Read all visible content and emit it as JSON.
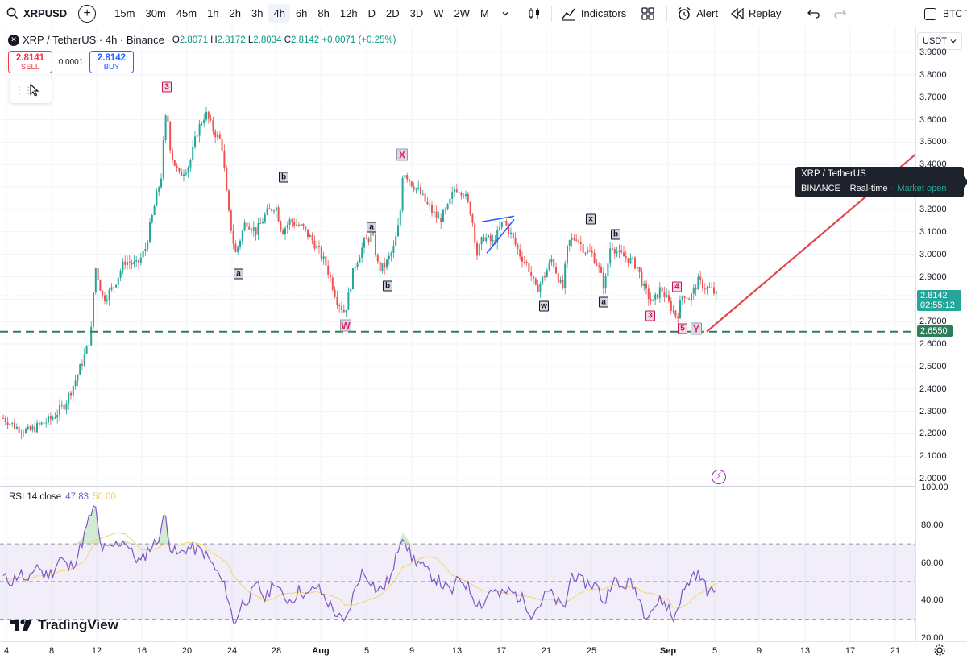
{
  "toolbar": {
    "symbol": "XRPUSD",
    "intervals": [
      "15m",
      "30m",
      "45m",
      "1h",
      "2h",
      "3h",
      "4h",
      "6h",
      "8h",
      "12h",
      "D",
      "2D",
      "3D",
      "W",
      "2W",
      "M"
    ],
    "active_interval": "4h",
    "indicators_label": "Indicators",
    "alert_label": "Alert",
    "replay_label": "Replay",
    "compare_symbol": "BTC T"
  },
  "legend": {
    "title": "XRP / TetherUS · 4h · Binance",
    "o_label": "O",
    "o": "2.8071",
    "h_label": "H",
    "h": "2.8172",
    "l_label": "L",
    "l": "2.8034",
    "c_label": "C",
    "c": "2.8142",
    "change": "+0.0071 (+0.25%)"
  },
  "trade": {
    "sell_price": "2.8141",
    "sell_label": "SELL",
    "spread": "0.0001",
    "buy_price": "2.8142",
    "buy_label": "BUY"
  },
  "currency": "USDT",
  "price_tag": {
    "price": "2.8142",
    "countdown": "02:55:12"
  },
  "support_tag": "2.6550",
  "tooltip": {
    "title": "XRP / TetherUS",
    "exchange": "BINANCE",
    "feed": "Real-time",
    "status": "Market open"
  },
  "rsi": {
    "label": "RSI 14 close",
    "value": "47.83",
    "ma": "50.00"
  },
  "brand": "TradingView",
  "colors": {
    "up": "#26a69a",
    "down": "#ef5350",
    "support": "#2e7d5b",
    "rsi": "#7e57c2",
    "trend": "#e0474c"
  },
  "waves": [
    {
      "t": "3",
      "style": "pink"
    },
    {
      "t": "b",
      "style": "dark"
    },
    {
      "t": "a",
      "style": "dark"
    },
    {
      "t": "X",
      "style": "bigpink"
    },
    {
      "t": "a",
      "style": "dark"
    },
    {
      "t": "b",
      "style": "dark"
    },
    {
      "t": "W",
      "style": "bigpink"
    },
    {
      "t": "x",
      "style": "dark"
    },
    {
      "t": "b",
      "style": "dark"
    },
    {
      "t": "w",
      "style": "dark"
    },
    {
      "t": "a",
      "style": "dark"
    },
    {
      "t": "4",
      "style": "pink"
    },
    {
      "t": "3",
      "style": "pink"
    },
    {
      "t": "5",
      "style": "pink"
    },
    {
      "t": "Y",
      "style": "bigpink"
    }
  ],
  "chart_data": {
    "type": "candlestick",
    "title": "XRP / TetherUS · 4h · Binance",
    "ylim": [
      1.95,
      3.93
    ],
    "y_ticks": [
      "3.9000",
      "3.8000",
      "3.7000",
      "3.6000",
      "3.5000",
      "3.4000",
      "3.3000",
      "3.2000",
      "3.1000",
      "3.0000",
      "2.9000",
      "2.8000",
      "2.7000",
      "2.6000",
      "2.5000",
      "2.4000",
      "2.3000",
      "2.2000",
      "2.1000",
      "2.0000"
    ],
    "x_ticks": [
      "4",
      "8",
      "12",
      "16",
      "20",
      "24",
      "28",
      "Aug",
      "5",
      "9",
      "13",
      "17",
      "21",
      "25",
      "Sep",
      "5",
      "9",
      "13",
      "17",
      "21"
    ],
    "price_path": [
      [
        4,
        2.27
      ],
      [
        20,
        2.23
      ],
      [
        35,
        2.21
      ],
      [
        50,
        2.24
      ],
      [
        65,
        2.27
      ],
      [
        80,
        2.33
      ],
      [
        95,
        2.45
      ],
      [
        108,
        2.58
      ],
      [
        113,
        2.65
      ],
      [
        118,
        2.95
      ],
      [
        128,
        2.8
      ],
      [
        140,
        2.85
      ],
      [
        155,
        2.97
      ],
      [
        170,
        2.95
      ],
      [
        180,
        3.02
      ],
      [
        192,
        3.22
      ],
      [
        200,
        3.35
      ],
      [
        204,
        3.55
      ],
      [
        207,
        3.65
      ],
      [
        212,
        3.45
      ],
      [
        222,
        3.35
      ],
      [
        235,
        3.4
      ],
      [
        245,
        3.55
      ],
      [
        255,
        3.63
      ],
      [
        265,
        3.55
      ],
      [
        275,
        3.5
      ],
      [
        283,
        3.2
      ],
      [
        292,
        3.0
      ],
      [
        305,
        3.15
      ],
      [
        318,
        3.1
      ],
      [
        330,
        3.18
      ],
      [
        342,
        3.22
      ],
      [
        350,
        3.1
      ],
      [
        360,
        3.15
      ],
      [
        375,
        3.12
      ],
      [
        390,
        3.05
      ],
      [
        405,
        2.95
      ],
      [
        418,
        2.8
      ],
      [
        428,
        2.74
      ],
      [
        440,
        2.95
      ],
      [
        452,
        3.05
      ],
      [
        462,
        3.09
      ],
      [
        470,
        2.93
      ],
      [
        478,
        2.95
      ],
      [
        488,
        3.02
      ],
      [
        496,
        3.15
      ],
      [
        500,
        3.38
      ],
      [
        510,
        3.32
      ],
      [
        520,
        3.28
      ],
      [
        530,
        3.22
      ],
      [
        545,
        3.15
      ],
      [
        555,
        3.2
      ],
      [
        565,
        3.3
      ],
      [
        575,
        3.28
      ],
      [
        585,
        3.18
      ],
      [
        592,
        3.0
      ],
      [
        600,
        3.08
      ],
      [
        612,
        3.05
      ],
      [
        625,
        3.15
      ],
      [
        635,
        3.08
      ],
      [
        645,
        3.0
      ],
      [
        655,
        2.95
      ],
      [
        665,
        2.84
      ],
      [
        675,
        2.9
      ],
      [
        685,
        2.98
      ],
      [
        698,
        2.84
      ],
      [
        705,
        3.05
      ],
      [
        715,
        3.08
      ],
      [
        725,
        3.02
      ],
      [
        735,
        3.0
      ],
      [
        742,
        2.95
      ],
      [
        750,
        2.85
      ],
      [
        758,
        3.05
      ],
      [
        768,
        3.0
      ],
      [
        780,
        2.98
      ],
      [
        790,
        2.95
      ],
      [
        800,
        2.84
      ],
      [
        810,
        2.78
      ],
      [
        820,
        2.85
      ],
      [
        830,
        2.78
      ],
      [
        840,
        2.72
      ],
      [
        848,
        2.83
      ],
      [
        856,
        2.8
      ],
      [
        866,
        2.88
      ],
      [
        876,
        2.85
      ],
      [
        884,
        2.84
      ],
      [
        890,
        2.81
      ]
    ],
    "rsi_ylim": [
      20,
      100
    ],
    "rsi_ticks": [
      "100.00",
      "80.00",
      "60.00",
      "40.00",
      "20.00"
    ],
    "rsi_bands": [
      30,
      50,
      70
    ],
    "rsi_path": [
      [
        4,
        52
      ],
      [
        15,
        50
      ],
      [
        25,
        55
      ],
      [
        35,
        48
      ],
      [
        45,
        60
      ],
      [
        55,
        53
      ],
      [
        65,
        55
      ],
      [
        75,
        63
      ],
      [
        85,
        57
      ],
      [
        95,
        62
      ],
      [
        105,
        75
      ],
      [
        112,
        85
      ],
      [
        118,
        90
      ],
      [
        125,
        68
      ],
      [
        135,
        67
      ],
      [
        145,
        70
      ],
      [
        155,
        72
      ],
      [
        165,
        64
      ],
      [
        175,
        60
      ],
      [
        185,
        68
      ],
      [
        195,
        71
      ],
      [
        205,
        86
      ],
      [
        212,
        67
      ],
      [
        222,
        64
      ],
      [
        232,
        68
      ],
      [
        242,
        67
      ],
      [
        252,
        66
      ],
      [
        262,
        60
      ],
      [
        272,
        53
      ],
      [
        282,
        44
      ],
      [
        290,
        27
      ],
      [
        300,
        38
      ],
      [
        310,
        42
      ],
      [
        320,
        48
      ],
      [
        330,
        40
      ],
      [
        340,
        51
      ],
      [
        350,
        42
      ],
      [
        362,
        40
      ],
      [
        372,
        46
      ],
      [
        382,
        42
      ],
      [
        392,
        48
      ],
      [
        402,
        42
      ],
      [
        412,
        36
      ],
      [
        422,
        30
      ],
      [
        428,
        27
      ],
      [
        438,
        42
      ],
      [
        448,
        55
      ],
      [
        458,
        52
      ],
      [
        468,
        45
      ],
      [
        478,
        48
      ],
      [
        488,
        55
      ],
      [
        495,
        70
      ],
      [
        500,
        76
      ],
      [
        510,
        63
      ],
      [
        520,
        60
      ],
      [
        530,
        55
      ],
      [
        540,
        52
      ],
      [
        550,
        48
      ],
      [
        560,
        44
      ],
      [
        570,
        52
      ],
      [
        580,
        48
      ],
      [
        590,
        40
      ],
      [
        600,
        38
      ],
      [
        610,
        47
      ],
      [
        620,
        42
      ],
      [
        630,
        45
      ],
      [
        640,
        43
      ],
      [
        650,
        40
      ],
      [
        660,
        33
      ],
      [
        670,
        38
      ],
      [
        680,
        45
      ],
      [
        690,
        40
      ],
      [
        700,
        35
      ],
      [
        710,
        55
      ],
      [
        720,
        50
      ],
      [
        730,
        49
      ],
      [
        740,
        48
      ],
      [
        750,
        38
      ],
      [
        760,
        52
      ],
      [
        770,
        46
      ],
      [
        780,
        50
      ],
      [
        790,
        45
      ],
      [
        800,
        33
      ],
      [
        810,
        36
      ],
      [
        820,
        40
      ],
      [
        830,
        36
      ],
      [
        835,
        29
      ],
      [
        845,
        42
      ],
      [
        855,
        50
      ],
      [
        862,
        55
      ],
      [
        870,
        52
      ],
      [
        878,
        45
      ],
      [
        884,
        44
      ],
      [
        890,
        48
      ]
    ]
  }
}
